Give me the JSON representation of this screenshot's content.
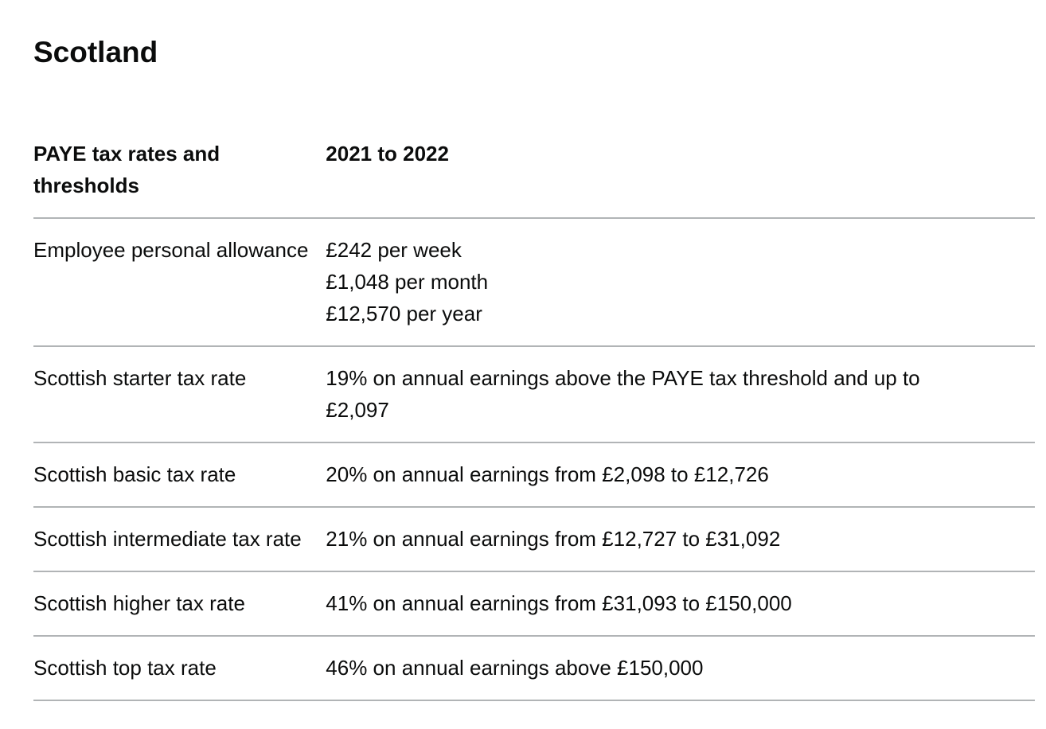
{
  "heading": "Scotland",
  "table": {
    "headers": [
      "PAYE tax rates and thresholds",
      "2021 to 2022"
    ],
    "rows": [
      {
        "label": "Employee personal allowance",
        "lines": [
          "£242 per week",
          "£1,048 per month",
          "£12,570 per year"
        ]
      },
      {
        "label": "Scottish starter tax rate",
        "lines": [
          "19% on annual earnings above the PAYE tax threshold and up to £2,097"
        ]
      },
      {
        "label": "Scottish basic tax rate",
        "lines": [
          "20% on annual earnings from £2,098 to £12,726"
        ]
      },
      {
        "label": "Scottish intermediate tax rate",
        "lines": [
          "21% on annual earnings from £12,727 to £31,092"
        ]
      },
      {
        "label": "Scottish higher tax rate",
        "lines": [
          "41% on annual earnings from £31,093 to £150,000"
        ]
      },
      {
        "label": "Scottish top tax rate",
        "lines": [
          "46% on annual earnings above £150,000"
        ]
      }
    ]
  },
  "colors": {
    "text": "#0b0c0c",
    "row_divider": "#b1b4b6",
    "background": "#ffffff"
  }
}
